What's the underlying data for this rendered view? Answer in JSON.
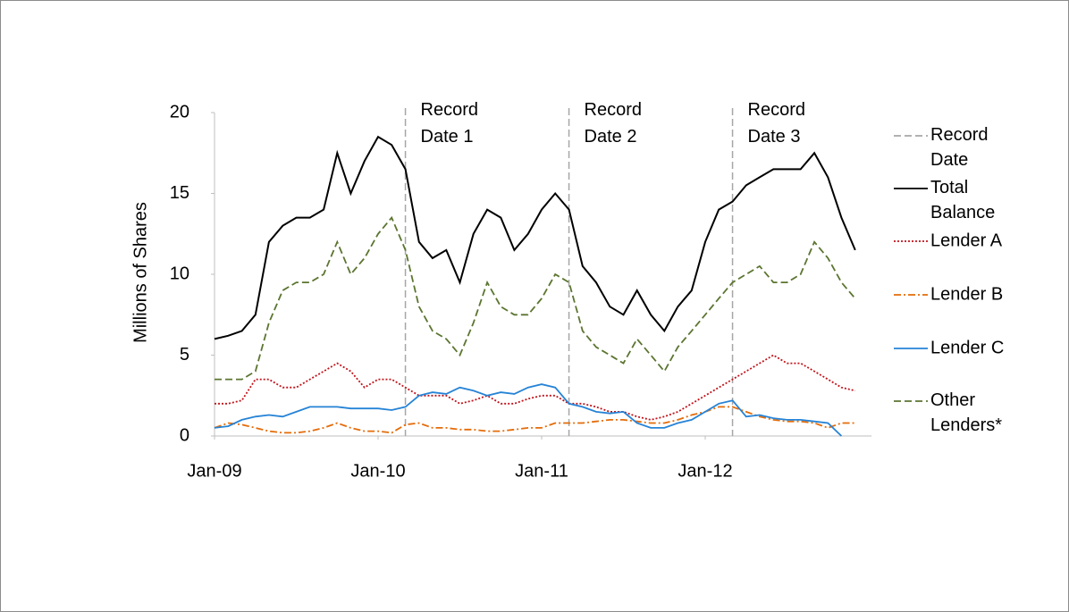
{
  "chart_data": {
    "type": "line",
    "y_label": "Millions of Shares",
    "xlim": [
      2009,
      2013
    ],
    "xticks": [
      {
        "value": 2009,
        "label": "Jan-09"
      },
      {
        "value": 2010,
        "label": "Jan-10"
      },
      {
        "value": 2011,
        "label": "Jan-11"
      },
      {
        "value": 2012,
        "label": "Jan-12"
      }
    ],
    "ylim": [
      0,
      20
    ],
    "yticks": [
      0,
      5,
      10,
      15,
      20
    ],
    "grid": false,
    "legend": "right",
    "x": [
      2009,
      2009.083,
      2009.167,
      2009.25,
      2009.333,
      2009.417,
      2009.5,
      2009.583,
      2009.667,
      2009.75,
      2009.833,
      2009.917,
      2010,
      2010.083,
      2010.167,
      2010.25,
      2010.333,
      2010.417,
      2010.5,
      2010.583,
      2010.667,
      2010.75,
      2010.833,
      2010.917,
      2011,
      2011.083,
      2011.167,
      2011.25,
      2011.333,
      2011.417,
      2011.5,
      2011.583,
      2011.667,
      2011.75,
      2011.833,
      2011.917,
      2012,
      2012.083,
      2012.167,
      2012.25,
      2012.333,
      2012.417,
      2012.5,
      2012.583,
      2012.667,
      2012.75,
      2012.833,
      2012.917
    ],
    "record_dates": {
      "name": "Record Date",
      "color": "#a6a6a6",
      "dash": "dashed",
      "x": [
        2010.167,
        2011.167,
        2012.167
      ],
      "labels": [
        "Record Date 1",
        "Record Date 2",
        "Record Date 3"
      ]
    },
    "series": [
      {
        "name": "Total Balance",
        "color": "#000000",
        "dash": "solid",
        "values": [
          6,
          6.2,
          6.5,
          7.5,
          12,
          13,
          13.5,
          13.5,
          14,
          17.5,
          15,
          17,
          18.5,
          18,
          16.5,
          12,
          11,
          11.5,
          9.5,
          12.5,
          14,
          13.5,
          11.5,
          12.5,
          14,
          15,
          14,
          10.5,
          9.5,
          8,
          7.5,
          9,
          7.5,
          6.5,
          8,
          9,
          12,
          14,
          14.5,
          15.5,
          16,
          16.5,
          16.5,
          16.5,
          17.5,
          16,
          13.5,
          11.5
        ]
      },
      {
        "name": "Lender A",
        "color": "#c0141c",
        "dash": "dotted",
        "values": [
          2,
          2,
          2.2,
          3.5,
          3.5,
          3,
          3,
          3.5,
          4,
          4.5,
          4,
          3,
          3.5,
          3.5,
          3,
          2.5,
          2.5,
          2.5,
          2,
          2.2,
          2.5,
          2,
          2,
          2.3,
          2.5,
          2.5,
          2,
          2,
          1.8,
          1.5,
          1.5,
          1.2,
          1,
          1.2,
          1.5,
          2,
          2.5,
          3,
          3.5,
          4,
          4.5,
          5,
          4.5,
          4.5,
          4,
          3.5,
          3,
          2.8
        ]
      },
      {
        "name": "Lender B",
        "color": "#e46c0a",
        "dash": "dashdot",
        "values": [
          0.5,
          0.8,
          0.7,
          0.5,
          0.3,
          0.2,
          0.2,
          0.3,
          0.5,
          0.8,
          0.5,
          0.3,
          0.3,
          0.2,
          0.7,
          0.8,
          0.5,
          0.5,
          0.4,
          0.4,
          0.3,
          0.3,
          0.4,
          0.5,
          0.5,
          0.8,
          0.8,
          0.8,
          0.9,
          1,
          1,
          0.9,
          0.8,
          0.8,
          1,
          1.3,
          1.5,
          1.8,
          1.8,
          1.5,
          1.2,
          1,
          0.9,
          0.9,
          0.8,
          0.5,
          0.8,
          0.8
        ]
      },
      {
        "name": "Lender C",
        "color": "#2583d6",
        "dash": "solid",
        "values": [
          0.5,
          0.6,
          1,
          1.2,
          1.3,
          1.2,
          1.5,
          1.8,
          1.8,
          1.8,
          1.7,
          1.7,
          1.7,
          1.6,
          1.8,
          2.5,
          2.7,
          2.6,
          3,
          2.8,
          2.5,
          2.7,
          2.6,
          3,
          3.2,
          3,
          2,
          1.8,
          1.5,
          1.4,
          1.5,
          0.8,
          0.5,
          0.5,
          0.8,
          1,
          1.5,
          2,
          2.2,
          1.2,
          1.3,
          1.1,
          1,
          1,
          0.9,
          0.8,
          0,
          null
        ]
      },
      {
        "name": "Other Lenders*",
        "color": "#5b7530",
        "dash": "dashed",
        "values": [
          3.5,
          3.5,
          3.5,
          4,
          7,
          9,
          9.5,
          9.5,
          10,
          12,
          10,
          11,
          12.5,
          13.5,
          11.5,
          8,
          6.5,
          6,
          5,
          7,
          9.5,
          8,
          7.5,
          7.5,
          8.5,
          10,
          9.5,
          6.5,
          5.5,
          5,
          4.5,
          6,
          5,
          4,
          5.5,
          6.5,
          7.5,
          8.5,
          9.5,
          10,
          10.5,
          9.5,
          9.5,
          10,
          12,
          11,
          9.5,
          8.5
        ]
      }
    ]
  }
}
